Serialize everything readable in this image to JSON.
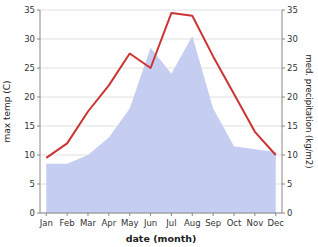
{
  "chart_data": {
    "type": "line",
    "xlabel": "date (month)",
    "ylabel": "max temp (C)",
    "y2label": "med. precipitation (kg/m2)",
    "categories": [
      "Jan",
      "Feb",
      "Mar",
      "Apr",
      "May",
      "Jun",
      "Jul",
      "Aug",
      "Sep",
      "Oct",
      "Nov",
      "Dec"
    ],
    "series": [
      {
        "type": "area",
        "axis": "y2",
        "color": "#c5cef0",
        "values": [
          8.5,
          8.5,
          10.0,
          13.0,
          18.0,
          28.5,
          24.0,
          30.5,
          18.0,
          11.5,
          11.0,
          10.5
        ]
      },
      {
        "type": "line",
        "color": "#cc3333",
        "values": [
          9.5,
          12.0,
          17.5,
          22.0,
          27.5,
          25.0,
          34.5,
          34.0,
          27.0,
          20.5,
          14.0,
          10.0
        ]
      }
    ],
    "ylim": [
      0,
      35
    ],
    "yticks": [
      0,
      5,
      10,
      15,
      20,
      25,
      30,
      35
    ],
    "y2lim": [
      0,
      35
    ],
    "y2ticks": [
      0,
      5,
      10,
      15,
      20,
      25,
      30,
      35
    ],
    "grid": true
  }
}
